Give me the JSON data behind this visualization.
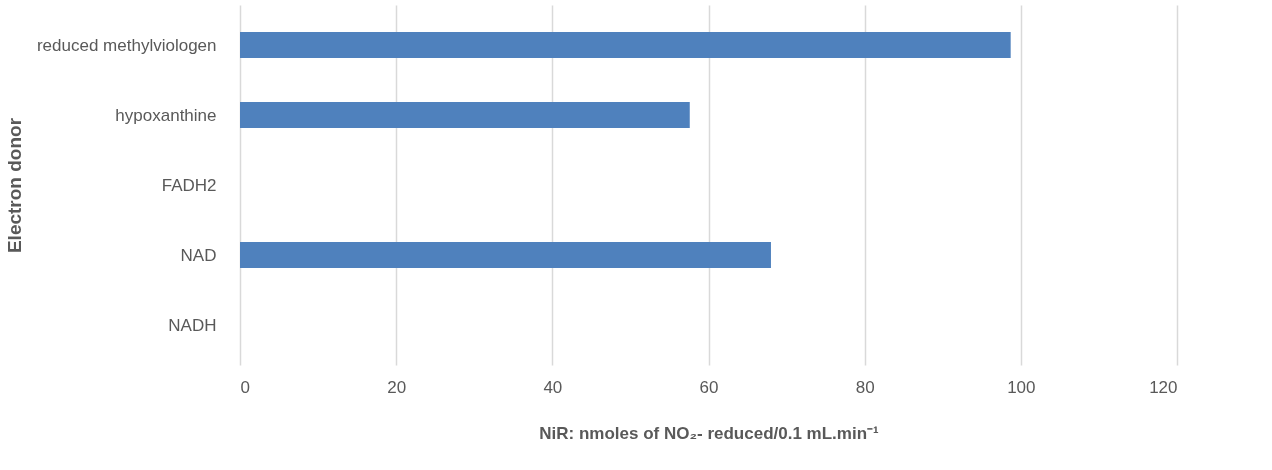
{
  "chart_data": {
    "type": "bar",
    "orientation": "horizontal",
    "xlabel": "NiR: nmoles of NO₂- reduced/0.1 mL.min⁻¹",
    "ylabel": "Electron donor",
    "categories": [
      "reduced methylviologen",
      "hypoxanthine",
      "FADH2",
      "NAD",
      "NADH"
    ],
    "values": [
      98.7,
      57.6,
      null,
      68.0,
      null
    ],
    "color": "#4f81bd",
    "xlim": [
      0,
      120
    ],
    "xticks": [
      0,
      20,
      40,
      60,
      80,
      100,
      120
    ],
    "grid": "x"
  }
}
